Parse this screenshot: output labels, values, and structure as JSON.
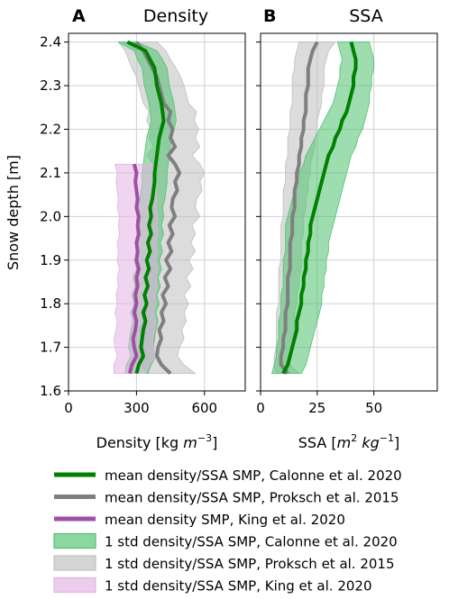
{
  "chart_data": [
    {
      "type": "line",
      "panel_letter": "A",
      "title": "Density",
      "xlabel": "Density [kg m⁻³]",
      "xlabel_parts": {
        "base": "Density [kg ",
        "var": "m",
        "sup": "−3",
        "close": "]"
      },
      "ylabel": "Snow depth [m]",
      "xlim": [
        0,
        780
      ],
      "ylim": [
        1.6,
        2.42
      ],
      "xticks": [
        0,
        300,
        600
      ],
      "xtick_labels": [
        "0",
        "300",
        "600"
      ],
      "yticks": [
        1.6,
        1.7,
        1.8,
        1.9,
        2.0,
        2.1,
        2.2,
        2.3,
        2.4
      ],
      "ytick_labels": [
        "1.6",
        "1.7",
        "1.8",
        "1.9",
        "2.0",
        "2.1",
        "2.2",
        "2.3",
        "2.4"
      ],
      "grid": true,
      "depth": [
        1.64,
        1.66,
        1.68,
        1.7,
        1.72,
        1.74,
        1.76,
        1.78,
        1.8,
        1.82,
        1.84,
        1.86,
        1.88,
        1.9,
        1.92,
        1.94,
        1.96,
        1.98,
        2.0,
        2.02,
        2.04,
        2.06,
        2.08,
        2.1,
        2.12,
        2.14,
        2.16,
        2.18,
        2.2,
        2.22,
        2.24,
        2.26,
        2.28,
        2.3,
        2.32,
        2.34,
        2.36,
        2.38,
        2.4
      ],
      "series": [
        {
          "name": "mean density/SSA SMP, Proksch et al. 2015",
          "color": "#7f7f7f",
          "kind": "line",
          "values": [
            450,
            410,
            390,
            395,
            410,
            400,
            420,
            410,
            430,
            415,
            440,
            425,
            450,
            430,
            455,
            440,
            460,
            445,
            470,
            455,
            460,
            480,
            470,
            490,
            470,
            440,
            470,
            450,
            460,
            440,
            450,
            420,
            410,
            400,
            390,
            370,
            350,
            330,
            300
          ]
        },
        {
          "name": "mean density/SSA SMP, Calonne et al. 2020",
          "color": "#008000",
          "kind": "line",
          "values": [
            300,
            310,
            330,
            320,
            325,
            330,
            340,
            330,
            345,
            335,
            350,
            340,
            355,
            345,
            360,
            350,
            365,
            355,
            365,
            360,
            370,
            375,
            380,
            380,
            385,
            390,
            395,
            400,
            410,
            420,
            415,
            410,
            400,
            390,
            385,
            380,
            360,
            340,
            260
          ]
        },
        {
          "name": "mean density SMP, King et al. 2020",
          "color": "#a14fa6",
          "kind": "line",
          "values": [
            270,
            280,
            300,
            290,
            285,
            295,
            300,
            290,
            300,
            295,
            305,
            300,
            310,
            300,
            305,
            300,
            310,
            305,
            310,
            300,
            305,
            300,
            295,
            300,
            290
          ]
        },
        {
          "name": "1 std density/SSA SMP, Proksch et al. 2015",
          "color": "#bfbfbf",
          "kind": "band",
          "lower": [
            350,
            320,
            300,
            310,
            320,
            310,
            330,
            320,
            340,
            330,
            350,
            330,
            360,
            340,
            360,
            345,
            365,
            350,
            375,
            360,
            365,
            385,
            375,
            395,
            375,
            345,
            375,
            355,
            365,
            345,
            355,
            330,
            320,
            310,
            300,
            280,
            265,
            250,
            220
          ],
          "upper": [
            560,
            510,
            480,
            490,
            510,
            500,
            520,
            510,
            530,
            510,
            540,
            520,
            550,
            530,
            560,
            540,
            560,
            545,
            580,
            560,
            565,
            590,
            580,
            600,
            580,
            545,
            580,
            560,
            575,
            555,
            565,
            530,
            520,
            510,
            495,
            475,
            450,
            430,
            390
          ]
        },
        {
          "name": "1 std density/SSA SMP, Calonne et al. 2020",
          "color": "#4fc16f",
          "kind": "band",
          "lower": [
            250,
            255,
            275,
            265,
            270,
            275,
            285,
            275,
            290,
            280,
            295,
            285,
            300,
            290,
            305,
            295,
            310,
            300,
            310,
            305,
            315,
            320,
            325,
            325,
            330,
            335,
            340,
            345,
            355,
            365,
            360,
            355,
            345,
            335,
            330,
            325,
            305,
            290,
            220
          ],
          "upper": [
            350,
            365,
            385,
            375,
            380,
            385,
            395,
            385,
            400,
            390,
            405,
            395,
            410,
            400,
            415,
            405,
            420,
            410,
            420,
            415,
            425,
            430,
            435,
            435,
            440,
            445,
            450,
            455,
            465,
            475,
            470,
            465,
            455,
            445,
            440,
            435,
            415,
            390,
            300
          ]
        },
        {
          "name": "1 std density/SSA SMP, King et al. 2020",
          "color": "#e3b2e3",
          "kind": "band",
          "lower": [
            200,
            200,
            215,
            205,
            200,
            210,
            215,
            205,
            215,
            210,
            220,
            215,
            225,
            215,
            220,
            215,
            225,
            220,
            225,
            215,
            220,
            215,
            210,
            215,
            205
          ],
          "upper": [
            340,
            355,
            385,
            375,
            370,
            380,
            385,
            375,
            385,
            380,
            390,
            385,
            395,
            385,
            390,
            385,
            395,
            390,
            395,
            385,
            390,
            385,
            380,
            385,
            375
          ]
        }
      ]
    },
    {
      "type": "line",
      "panel_letter": "B",
      "title": "SSA",
      "xlabel": "SSA [m² kg⁻¹]",
      "xlabel_parts": {
        "base": "SSA [",
        "var": "m",
        "sup": "2",
        "var2": " kg",
        "sup2": "−1",
        "close": "]"
      },
      "xlim": [
        0,
        78
      ],
      "ylim": [
        1.6,
        2.42
      ],
      "xticks": [
        0,
        25,
        50
      ],
      "xtick_labels": [
        "0",
        "25",
        "50"
      ],
      "yticks": [
        1.6,
        1.7,
        1.8,
        1.9,
        2.0,
        2.1,
        2.2,
        2.3,
        2.4
      ],
      "grid": true,
      "depth": [
        1.64,
        1.66,
        1.68,
        1.7,
        1.72,
        1.74,
        1.76,
        1.78,
        1.8,
        1.82,
        1.84,
        1.86,
        1.88,
        1.9,
        1.92,
        1.94,
        1.96,
        1.98,
        2.0,
        2.02,
        2.04,
        2.06,
        2.08,
        2.1,
        2.12,
        2.14,
        2.16,
        2.18,
        2.2,
        2.22,
        2.24,
        2.26,
        2.28,
        2.3,
        2.32,
        2.34,
        2.36,
        2.38,
        2.4
      ],
      "series": [
        {
          "name": "mean density/SSA SMP, Proksch et al. 2015",
          "color": "#7f7f7f",
          "kind": "line",
          "values": [
            12,
            9,
            9,
            10,
            10,
            11,
            11,
            11,
            12,
            12,
            12,
            12,
            13,
            13,
            13,
            13,
            14,
            14,
            14,
            15,
            15,
            15,
            16,
            16,
            17,
            17,
            18,
            18,
            19,
            19,
            20,
            20,
            20,
            21,
            21,
            21,
            22,
            23,
            25
          ]
        },
        {
          "name": "mean density/SSA SMP, Calonne et al. 2020",
          "color": "#008000",
          "kind": "line",
          "values": [
            10,
            12,
            13,
            14,
            15,
            16,
            16,
            17,
            18,
            18,
            19,
            19,
            20,
            20,
            21,
            21,
            22,
            22,
            23,
            24,
            25,
            26,
            27,
            28,
            29,
            30,
            32,
            33,
            35,
            36,
            38,
            39,
            40,
            41,
            41,
            42,
            42,
            41,
            40
          ]
        },
        {
          "name": "1 std density/SSA SMP, Proksch et al. 2015",
          "color": "#bfbfbf",
          "kind": "band",
          "lower": [
            7,
            6,
            6,
            7,
            7,
            7,
            7,
            7,
            8,
            8,
            8,
            8,
            8,
            9,
            9,
            9,
            9,
            9,
            10,
            10,
            10,
            10,
            11,
            11,
            11,
            12,
            12,
            12,
            13,
            13,
            13,
            14,
            14,
            14,
            14,
            15,
            15,
            16,
            17
          ],
          "upper": [
            17,
            13,
            13,
            14,
            14,
            15,
            15,
            15,
            16,
            16,
            17,
            17,
            18,
            18,
            18,
            18,
            19,
            19,
            19,
            20,
            20,
            21,
            21,
            22,
            22,
            23,
            24,
            24,
            25,
            25,
            26,
            27,
            27,
            28,
            28,
            28,
            29,
            30,
            33
          ]
        },
        {
          "name": "1 std density/SSA SMP, Calonne et al. 2020",
          "color": "#4fc16f",
          "kind": "band",
          "lower": [
            5,
            6,
            7,
            7,
            8,
            8,
            8,
            9,
            9,
            9,
            10,
            10,
            10,
            10,
            11,
            11,
            11,
            11,
            12,
            13,
            14,
            15,
            16,
            17,
            19,
            20,
            22,
            24,
            26,
            28,
            30,
            32,
            33,
            34,
            35,
            35,
            36,
            35,
            34
          ],
          "upper": [
            18,
            20,
            21,
            22,
            23,
            24,
            25,
            26,
            27,
            27,
            28,
            28,
            29,
            29,
            30,
            30,
            31,
            32,
            33,
            34,
            35,
            36,
            37,
            38,
            39,
            40,
            42,
            43,
            45,
            46,
            47,
            48,
            48,
            49,
            49,
            50,
            50,
            49,
            48
          ]
        }
      ]
    }
  ],
  "legend": [
    {
      "label": "mean density/SSA SMP, Calonne et al. 2020",
      "color": "#008000",
      "kind": "line"
    },
    {
      "label": "mean density/SSA SMP, Proksch et al. 2015",
      "color": "#7f7f7f",
      "kind": "line"
    },
    {
      "label": "mean density SMP, King et al. 2020",
      "color": "#a14fa6",
      "kind": "line"
    },
    {
      "label": "1 std density/SSA SMP, Calonne et al. 2020",
      "color": "#4fc16f",
      "kind": "band"
    },
    {
      "label": "1 std density/SSA SMP, Proksch et al. 2015",
      "color": "#bfbfbf",
      "kind": "band"
    },
    {
      "label": "1 std density/SSA SMP, King et al. 2020",
      "color": "#e3b2e3",
      "kind": "band"
    }
  ]
}
